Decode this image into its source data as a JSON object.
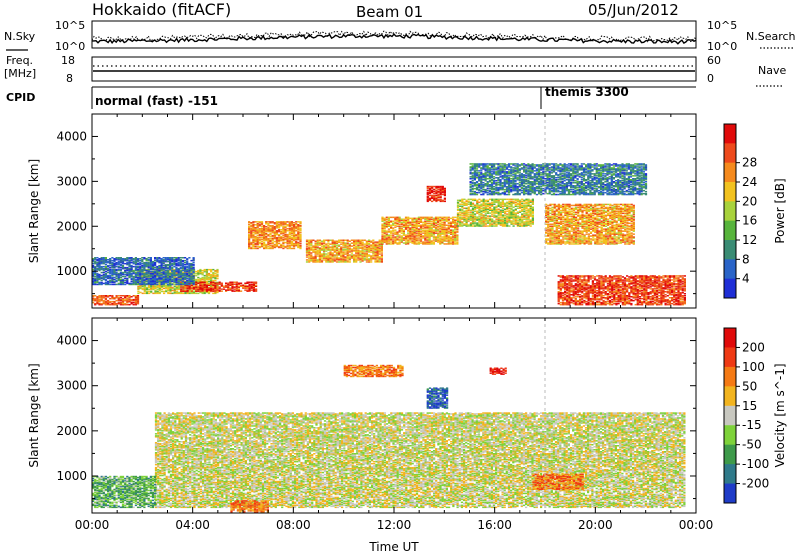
{
  "header": {
    "station": "Hokkaido (fitACF)",
    "beam": "Beam 01",
    "date": "05/Jun/2012"
  },
  "strips": {
    "nsky_label": "N.Sky",
    "nsearch_label": "N.Search",
    "noise_ticks_left": [
      "10^5",
      "10^0"
    ],
    "noise_ticks_right": [
      "10^5",
      "10^0"
    ],
    "freq_label": "Freq.",
    "freq_unit": "[MHz]",
    "freq_ticks": [
      "18",
      "8"
    ],
    "nave_label": "Nave",
    "nave_ticks": [
      "60",
      "0"
    ],
    "cpid_label": "CPID",
    "cpid_segments": [
      {
        "name": "normal (fast) -151",
        "start_hour": 0
      },
      {
        "name": "themis 3300",
        "start_hour": 18
      }
    ]
  },
  "chart_data": [
    {
      "type": "heatmap",
      "panel": "power",
      "ylabel": "Slant Range [km]",
      "ylim": [
        180,
        4500
      ],
      "yticks": [
        "1000",
        "2000",
        "3000",
        "4000"
      ],
      "yticks_values": [
        1000,
        2000,
        3000,
        4000
      ],
      "colorbar_label": "Power [dB]",
      "colorbar_ticks": [
        "4",
        "8",
        "12",
        "16",
        "20",
        "24",
        "28"
      ],
      "colorbar_colors": [
        "#1f2fd6",
        "#2a64c8",
        "#3a8c74",
        "#57b43c",
        "#a8d23c",
        "#f2c21f",
        "#f58a1d",
        "#ee4a1c",
        "#e10a0a"
      ],
      "regions": [
        {
          "t": [
            1.8,
            5.0
          ],
          "r": [
            500,
            1050
          ],
          "level": 0.55
        },
        {
          "t": [
            3.5,
            6.5
          ],
          "r": [
            550,
            750
          ],
          "level": 0.9
        },
        {
          "t": [
            6.2,
            8.3
          ],
          "r": [
            1500,
            2100
          ],
          "level": 0.75
        },
        {
          "t": [
            8.5,
            11.5
          ],
          "r": [
            1200,
            1700
          ],
          "level": 0.7
        },
        {
          "t": [
            11.5,
            14.5
          ],
          "r": [
            1600,
            2200
          ],
          "level": 0.7
        },
        {
          "t": [
            13.3,
            14.0
          ],
          "r": [
            2550,
            2900
          ],
          "level": 0.95
        },
        {
          "t": [
            14.5,
            17.5
          ],
          "r": [
            2000,
            2600
          ],
          "level": 0.55
        },
        {
          "t": [
            18.0,
            21.5
          ],
          "r": [
            1600,
            2500
          ],
          "level": 0.7
        },
        {
          "t": [
            18.5,
            23.6
          ],
          "r": [
            250,
            900
          ],
          "level": 0.9
        },
        {
          "t": [
            0.0,
            1.8
          ],
          "r": [
            250,
            450
          ],
          "level": 0.85
        },
        {
          "t": [
            0.0,
            4.0
          ],
          "r": [
            700,
            1300
          ],
          "level": 0.15
        },
        {
          "t": [
            15.0,
            22.0
          ],
          "r": [
            2700,
            3400
          ],
          "level": 0.2
        }
      ]
    },
    {
      "type": "heatmap",
      "panel": "velocity",
      "ylabel": "Slant Range [km]",
      "ylim": [
        180,
        4500
      ],
      "yticks": [
        "1000",
        "2000",
        "3000",
        "4000"
      ],
      "yticks_values": [
        1000,
        2000,
        3000,
        4000
      ],
      "xlabel": "Time UT",
      "xticks": [
        "00:00",
        "04:00",
        "08:00",
        "12:00",
        "16:00",
        "20:00",
        "00:00"
      ],
      "xticks_values": [
        0,
        4,
        8,
        12,
        16,
        20,
        24
      ],
      "colorbar_label": "Velocity [m s^-1]",
      "colorbar_ticks": [
        "200",
        "100",
        "50",
        "15",
        "-15",
        "-50",
        "-100",
        "-200"
      ],
      "colorbar_colors": [
        "#1f3cc8",
        "#2f7a8a",
        "#3e9a4a",
        "#7ed23a",
        "#c8c8c0",
        "#f2b41f",
        "#f57a14",
        "#ef3a14",
        "#e00a0a"
      ],
      "regions": [
        {
          "t": [
            2.5,
            23.5
          ],
          "r": [
            300,
            2400
          ],
          "level": 0.5
        },
        {
          "t": [
            13.3,
            14.1
          ],
          "r": [
            2500,
            2950
          ],
          "level": 0.05
        },
        {
          "t": [
            10.0,
            12.3
          ],
          "r": [
            3200,
            3450
          ],
          "level": 0.75
        },
        {
          "t": [
            17.5,
            19.5
          ],
          "r": [
            700,
            1050
          ],
          "level": 0.75
        },
        {
          "t": [
            5.5,
            7.0
          ],
          "r": [
            200,
            450
          ],
          "level": 0.75
        },
        {
          "t": [
            0.0,
            2.5
          ],
          "r": [
            300,
            1000
          ],
          "level": 0.3
        },
        {
          "t": [
            15.8,
            16.4
          ],
          "r": [
            3250,
            3400
          ],
          "level": 1.0
        }
      ]
    }
  ],
  "time_range_hours": [
    0,
    24
  ]
}
